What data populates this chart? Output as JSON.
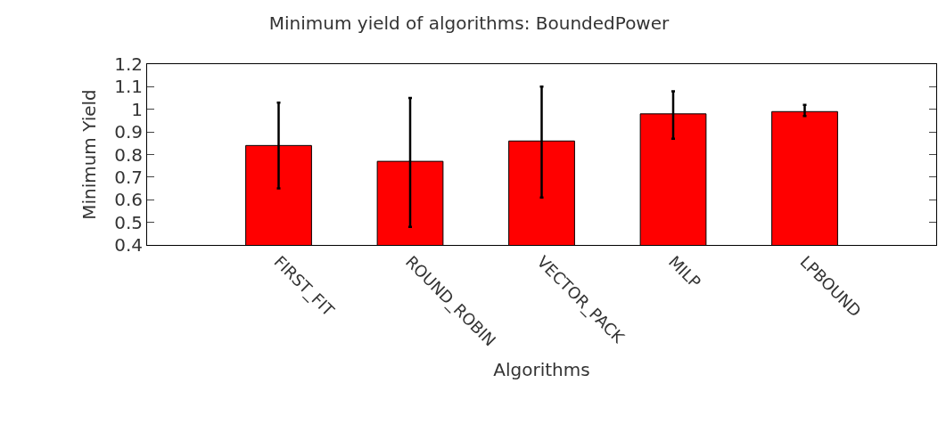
{
  "chart_data": {
    "type": "bar",
    "title": "Minimum yield of algorithms: BoundedPower",
    "xlabel": "Algorithms",
    "ylabel": "Minimum Yield",
    "categories": [
      "FIRST_FIT",
      "ROUND_ROBIN",
      "VECTOR_PACK",
      "MILP",
      "LPBOUND"
    ],
    "values": [
      0.84,
      0.77,
      0.86,
      0.98,
      0.99
    ],
    "errors": [
      [
        0.65,
        1.03
      ],
      [
        0.48,
        1.05
      ],
      [
        0.61,
        1.1
      ],
      [
        0.87,
        1.08
      ],
      [
        0.97,
        1.02
      ]
    ],
    "color": "#ff0000",
    "ylim": [
      0.4,
      1.2
    ],
    "yticks": [
      0.4,
      0.5,
      0.6,
      0.7,
      0.8,
      0.9,
      1,
      1.1,
      1.2
    ],
    "grid": false
  }
}
